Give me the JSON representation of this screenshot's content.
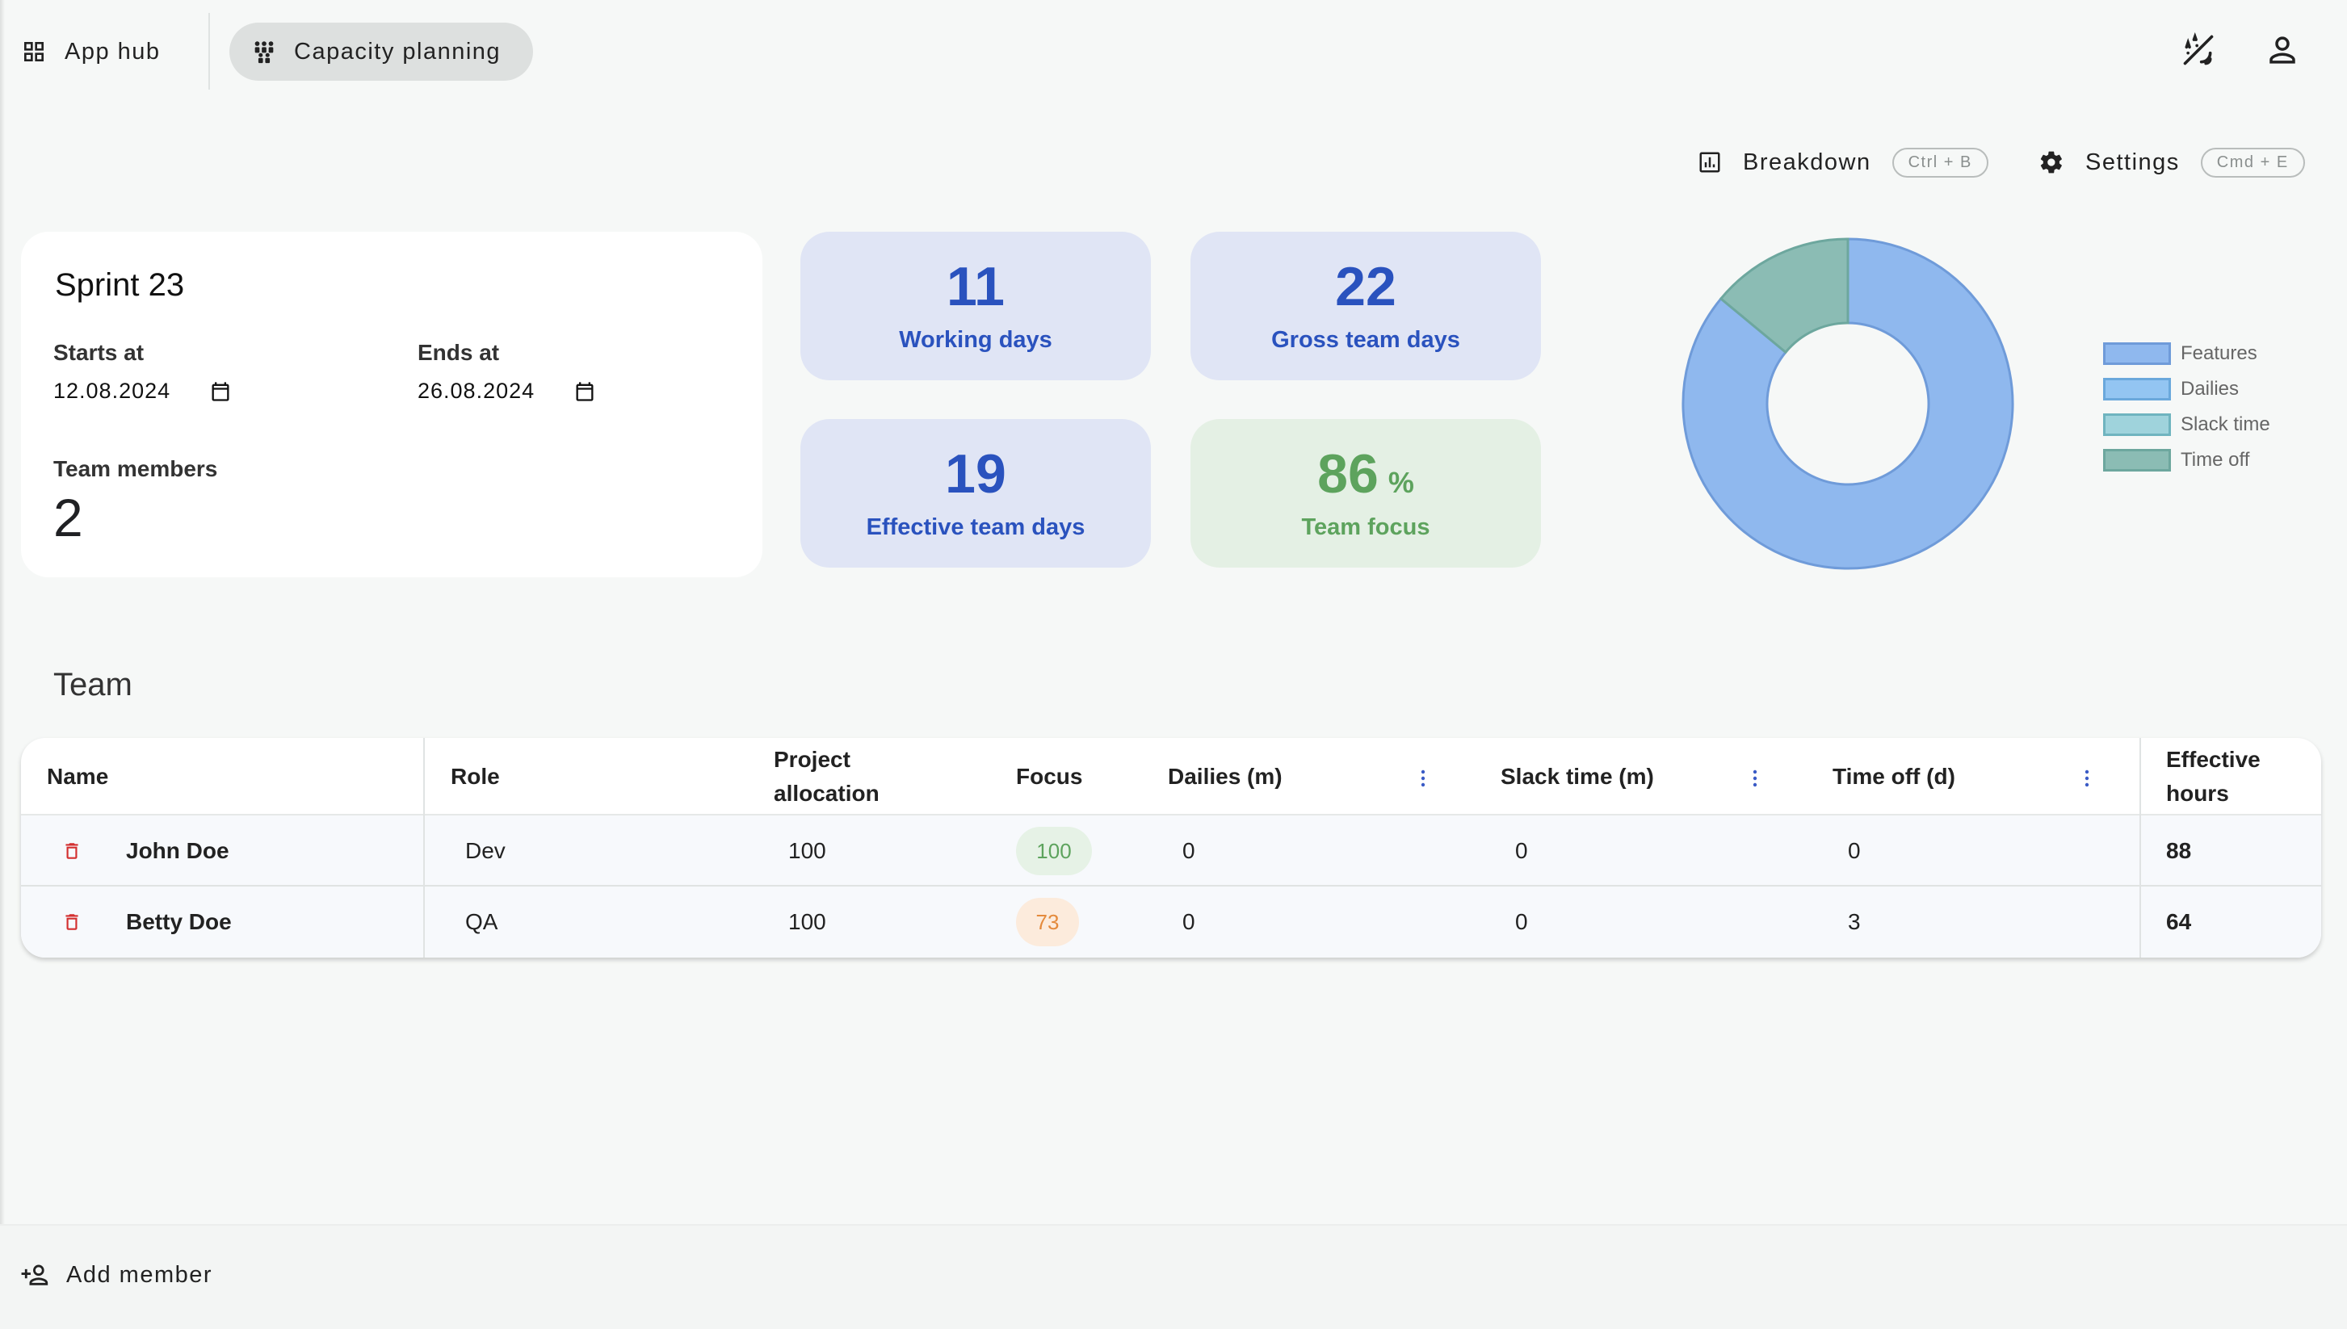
{
  "header": {
    "app_hub_label": "App hub",
    "current_app_label": "Capacity planning"
  },
  "toolbar": {
    "breakdown_label": "Breakdown",
    "breakdown_shortcut": "Ctrl + B",
    "settings_label": "Settings",
    "settings_shortcut": "Cmd + E"
  },
  "sprint": {
    "title": "Sprint 23",
    "starts_label": "Starts at",
    "starts_value": "12.08.2024",
    "ends_label": "Ends at",
    "ends_value": "26.08.2024",
    "members_label": "Team members",
    "members_value": "2"
  },
  "stats": {
    "working_days": {
      "value": "11",
      "label": "Working days"
    },
    "gross_team_days": {
      "value": "22",
      "label": "Gross team days"
    },
    "effective_team_days": {
      "value": "19",
      "label": "Effective team days"
    },
    "team_focus": {
      "value": "86",
      "unit": "%",
      "label": "Team focus"
    }
  },
  "chart_data": {
    "type": "pie",
    "donut": true,
    "categories": [
      "Features",
      "Dailies",
      "Slack time",
      "Time off"
    ],
    "values": [
      86,
      0,
      0,
      14
    ],
    "colors": {
      "Features": "#8fb8ee",
      "Dailies": "#93c5f2",
      "Slack time": "#9fd3dc",
      "Time off": "#8bbcb4"
    },
    "legend_position": "right"
  },
  "team": {
    "title": "Team",
    "columns": {
      "name": "Name",
      "role": "Role",
      "allocation_line1": "Project",
      "allocation_line2": "allocation",
      "focus": "Focus",
      "dailies": "Dailies (m)",
      "slack": "Slack time (m)",
      "timeoff": "Time off (d)",
      "effective_line1": "Effective",
      "effective_line2": "hours"
    },
    "rows": [
      {
        "name": "John Doe",
        "role": "Dev",
        "allocation": "100",
        "focus": "100",
        "dailies": "0",
        "slack": "0",
        "timeoff": "0",
        "effective": "88"
      },
      {
        "name": "Betty Doe",
        "role": "QA",
        "allocation": "100",
        "focus": "73",
        "dailies": "0",
        "slack": "0",
        "timeoff": "3",
        "effective": "64"
      }
    ]
  },
  "footer": {
    "add_member_label": "Add member"
  },
  "icons": {
    "app_hub": "grid-icon",
    "capacity": "people-group-icon",
    "theme": "theme-toggle-icon",
    "account": "person-icon",
    "breakdown": "bar-chart-icon",
    "settings": "gear-icon",
    "calendar": "calendar-icon",
    "delete": "trash-icon",
    "more": "more-vertical-icon",
    "add_member": "person-add-icon"
  },
  "colors": {
    "accent_blue": "#2a52be",
    "focus_green": "#5da35d",
    "focus_orange": "#e48a3c",
    "delete_red": "#d32f2f"
  }
}
